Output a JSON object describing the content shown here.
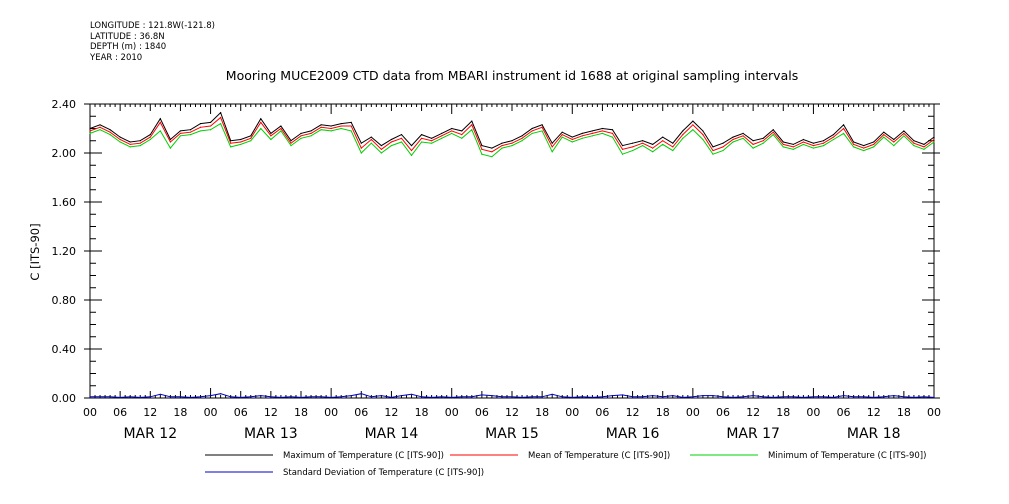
{
  "meta": {
    "longitude": "LONGITUDE : 121.8W(-121.8)",
    "latitude": "LATITUDE : 36.8N",
    "depth": "DEPTH (m) : 1840",
    "year": "YEAR : 2010"
  },
  "chart_data": {
    "type": "line",
    "title": "Mooring MUCE2009 CTD data from MBARI instrument id 1688 at original sampling intervals",
    "ylabel": "C [ITS-90]",
    "xlabel": "",
    "ylim": [
      0,
      2.4
    ],
    "xlim_hours": [
      0,
      168
    ],
    "y_ticks": [
      "0.00",
      "0.40",
      "0.80",
      "1.20",
      "1.60",
      "2.00",
      "2.40"
    ],
    "x_hour_ticks": [
      "00",
      "06",
      "12",
      "18",
      "00",
      "06",
      "12",
      "18",
      "00",
      "06",
      "12",
      "18",
      "00",
      "06",
      "12",
      "18",
      "00",
      "06",
      "12",
      "18",
      "00",
      "06",
      "12",
      "18",
      "00",
      "06",
      "12",
      "18",
      "00"
    ],
    "x_day_labels": [
      "MAR 12",
      "MAR 13",
      "MAR 14",
      "MAR 15",
      "MAR 16",
      "MAR 17",
      "MAR 18"
    ],
    "grid": false,
    "legend_position": "bottom",
    "series": [
      {
        "name": "Maximum of Temperature (C [ITS-90])",
        "color": "#000000",
        "x": [
          0,
          2,
          4,
          6,
          8,
          10,
          12,
          14,
          16,
          18,
          20,
          22,
          24,
          26,
          28,
          30,
          32,
          34,
          36,
          38,
          40,
          42,
          44,
          46,
          48,
          50,
          52,
          54,
          56,
          58,
          60,
          62,
          64,
          66,
          68,
          70,
          72,
          74,
          76,
          78,
          80,
          82,
          84,
          86,
          88,
          90,
          92,
          94,
          96,
          98,
          100,
          102,
          104,
          106,
          108,
          110,
          112,
          114,
          116,
          118,
          120,
          122,
          124,
          126,
          128,
          130,
          132,
          134,
          136,
          138,
          140,
          142,
          144,
          146,
          148,
          150,
          152,
          154,
          156,
          158,
          160,
          162,
          164,
          166,
          168
        ],
        "values": [
          2.2,
          2.23,
          2.19,
          2.13,
          2.09,
          2.1,
          2.15,
          2.28,
          2.11,
          2.18,
          2.19,
          2.24,
          2.25,
          2.33,
          2.1,
          2.11,
          2.14,
          2.28,
          2.16,
          2.22,
          2.1,
          2.16,
          2.18,
          2.23,
          2.22,
          2.24,
          2.25,
          2.08,
          2.13,
          2.06,
          2.11,
          2.15,
          2.06,
          2.15,
          2.12,
          2.16,
          2.2,
          2.18,
          2.26,
          2.06,
          2.04,
          2.08,
          2.1,
          2.14,
          2.2,
          2.23,
          2.08,
          2.17,
          2.13,
          2.16,
          2.18,
          2.2,
          2.19,
          2.06,
          2.08,
          2.1,
          2.07,
          2.13,
          2.08,
          2.18,
          2.26,
          2.18,
          2.05,
          2.08,
          2.13,
          2.16,
          2.1,
          2.12,
          2.19,
          2.09,
          2.07,
          2.11,
          2.08,
          2.1,
          2.15,
          2.23,
          2.09,
          2.06,
          2.09,
          2.17,
          2.11,
          2.18,
          2.1,
          2.07,
          2.13
        ],
        "note": "approximate trace read from plot"
      },
      {
        "name": "Mean of Temperature (C [ITS-90])",
        "color": "#ff0000",
        "x": [
          0,
          2,
          4,
          6,
          8,
          10,
          12,
          14,
          16,
          18,
          20,
          22,
          24,
          26,
          28,
          30,
          32,
          34,
          36,
          38,
          40,
          42,
          44,
          46,
          48,
          50,
          52,
          54,
          56,
          58,
          60,
          62,
          64,
          66,
          68,
          70,
          72,
          74,
          76,
          78,
          80,
          82,
          84,
          86,
          88,
          90,
          92,
          94,
          96,
          98,
          100,
          102,
          104,
          106,
          108,
          110,
          112,
          114,
          116,
          118,
          120,
          122,
          124,
          126,
          128,
          130,
          132,
          134,
          136,
          138,
          140,
          142,
          144,
          146,
          148,
          150,
          152,
          154,
          156,
          158,
          160,
          162,
          164,
          166,
          168
        ],
        "values": [
          2.18,
          2.21,
          2.17,
          2.11,
          2.07,
          2.08,
          2.13,
          2.25,
          2.09,
          2.16,
          2.17,
          2.21,
          2.22,
          2.29,
          2.08,
          2.09,
          2.12,
          2.25,
          2.14,
          2.2,
          2.08,
          2.14,
          2.16,
          2.21,
          2.2,
          2.22,
          2.22,
          2.04,
          2.11,
          2.03,
          2.09,
          2.12,
          2.02,
          2.12,
          2.1,
          2.14,
          2.18,
          2.15,
          2.23,
          2.03,
          2.01,
          2.06,
          2.08,
          2.12,
          2.18,
          2.21,
          2.05,
          2.15,
          2.11,
          2.14,
          2.16,
          2.18,
          2.16,
          2.03,
          2.05,
          2.08,
          2.04,
          2.1,
          2.05,
          2.15,
          2.23,
          2.15,
          2.02,
          2.05,
          2.11,
          2.14,
          2.07,
          2.1,
          2.17,
          2.07,
          2.05,
          2.09,
          2.06,
          2.08,
          2.13,
          2.2,
          2.07,
          2.04,
          2.07,
          2.15,
          2.09,
          2.16,
          2.08,
          2.05,
          2.11
        ]
      },
      {
        "name": "Minimum of Temperature (C [ITS-90])",
        "color": "#00d000",
        "x": [
          0,
          2,
          4,
          6,
          8,
          10,
          12,
          14,
          16,
          18,
          20,
          22,
          24,
          26,
          28,
          30,
          32,
          34,
          36,
          38,
          40,
          42,
          44,
          46,
          48,
          50,
          52,
          54,
          56,
          58,
          60,
          62,
          64,
          66,
          68,
          70,
          72,
          74,
          76,
          78,
          80,
          82,
          84,
          86,
          88,
          90,
          92,
          94,
          96,
          98,
          100,
          102,
          104,
          106,
          108,
          110,
          112,
          114,
          116,
          118,
          120,
          122,
          124,
          126,
          128,
          130,
          132,
          134,
          136,
          138,
          140,
          142,
          144,
          146,
          148,
          150,
          152,
          154,
          156,
          158,
          160,
          162,
          164,
          166,
          168
        ],
        "values": [
          2.16,
          2.19,
          2.15,
          2.09,
          2.05,
          2.06,
          2.11,
          2.18,
          2.04,
          2.14,
          2.15,
          2.18,
          2.19,
          2.24,
          2.05,
          2.07,
          2.1,
          2.2,
          2.11,
          2.18,
          2.06,
          2.12,
          2.14,
          2.19,
          2.18,
          2.2,
          2.18,
          2.0,
          2.08,
          2.0,
          2.06,
          2.09,
          1.98,
          2.09,
          2.08,
          2.12,
          2.16,
          2.12,
          2.19,
          1.99,
          1.97,
          2.04,
          2.06,
          2.1,
          2.16,
          2.18,
          2.01,
          2.13,
          2.09,
          2.12,
          2.14,
          2.16,
          2.13,
          1.99,
          2.02,
          2.06,
          2.01,
          2.07,
          2.02,
          2.12,
          2.19,
          2.11,
          1.99,
          2.02,
          2.09,
          2.12,
          2.04,
          2.08,
          2.15,
          2.05,
          2.03,
          2.07,
          2.04,
          2.06,
          2.11,
          2.16,
          2.05,
          2.02,
          2.05,
          2.13,
          2.06,
          2.14,
          2.06,
          2.03,
          2.09
        ]
      },
      {
        "name": "Standard Deviation of Temperature (C [ITS-90])",
        "color": "#0000c8",
        "x": [
          0,
          2,
          4,
          6,
          8,
          10,
          12,
          14,
          16,
          18,
          20,
          22,
          24,
          26,
          28,
          30,
          32,
          34,
          36,
          38,
          40,
          42,
          44,
          46,
          48,
          50,
          52,
          54,
          56,
          58,
          60,
          62,
          64,
          66,
          68,
          70,
          72,
          74,
          76,
          78,
          80,
          82,
          84,
          86,
          88,
          90,
          92,
          94,
          96,
          98,
          100,
          102,
          104,
          106,
          108,
          110,
          112,
          114,
          116,
          118,
          120,
          122,
          124,
          126,
          128,
          130,
          132,
          134,
          136,
          138,
          140,
          142,
          144,
          146,
          148,
          150,
          152,
          154,
          156,
          158,
          160,
          162,
          164,
          166,
          168
        ],
        "values": [
          0.01,
          0.01,
          0.01,
          0.005,
          0.01,
          0.005,
          0.01,
          0.03,
          0.01,
          0.01,
          0.005,
          0.01,
          0.02,
          0.035,
          0.01,
          0.005,
          0.01,
          0.02,
          0.01,
          0.005,
          0.01,
          0.005,
          0.01,
          0.01,
          0.005,
          0.01,
          0.02,
          0.035,
          0.01,
          0.02,
          0.005,
          0.02,
          0.03,
          0.01,
          0.005,
          0.01,
          0.005,
          0.01,
          0.01,
          0.025,
          0.02,
          0.01,
          0.01,
          0.005,
          0.01,
          0.01,
          0.03,
          0.01,
          0.005,
          0.01,
          0.005,
          0.01,
          0.02,
          0.025,
          0.01,
          0.01,
          0.02,
          0.01,
          0.02,
          0.005,
          0.01,
          0.02,
          0.02,
          0.01,
          0.005,
          0.01,
          0.02,
          0.01,
          0.005,
          0.01,
          0.01,
          0.005,
          0.01,
          0.01,
          0.005,
          0.02,
          0.01,
          0.01,
          0.005,
          0.01,
          0.02,
          0.01,
          0.005,
          0.01,
          0.005
        ]
      }
    ]
  }
}
